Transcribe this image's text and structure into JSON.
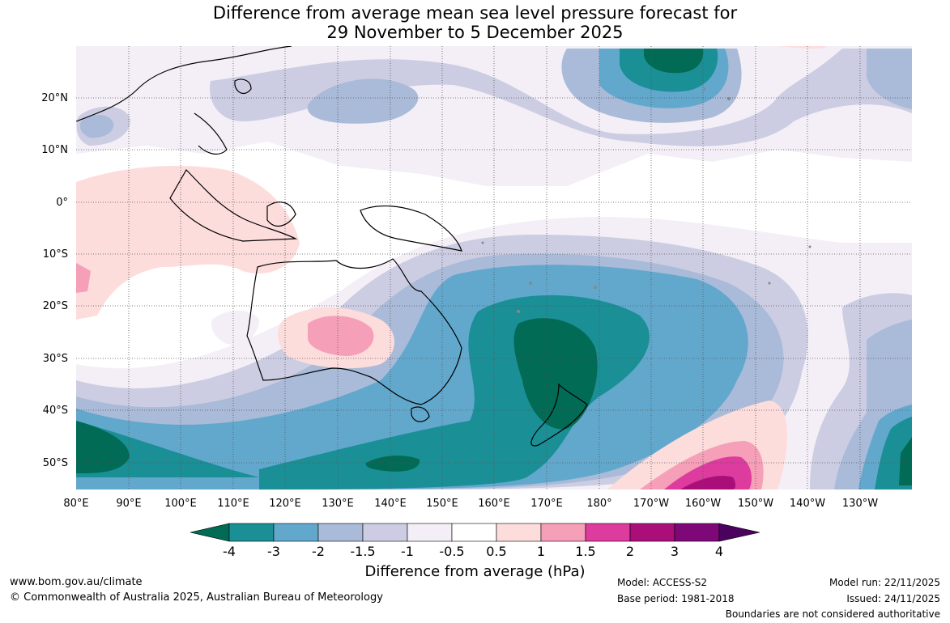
{
  "title": {
    "line1": "Difference from average mean sea level pressure forecast for",
    "line2": "29 November to 5 December 2025"
  },
  "map": {
    "lat_labels": [
      "20°N",
      "10°N",
      "0°",
      "10°S",
      "20°S",
      "30°S",
      "40°S",
      "50°S"
    ],
    "lon_labels": [
      "80°E",
      "90°E",
      "100°E",
      "110°E",
      "120°E",
      "130°E",
      "140°E",
      "150°E",
      "160°E",
      "170°E",
      "180°",
      "170°W",
      "160°W",
      "150°W",
      "140°W",
      "130°W"
    ],
    "lon_range": [
      80,
      235
    ],
    "lat_range": [
      -55,
      30
    ],
    "gridlines": true
  },
  "colorbar": {
    "title": "Difference from average (hPa)",
    "tick_labels": [
      "-4",
      "-3",
      "-2",
      "-1.5",
      "-1",
      "-0.5",
      "0.5",
      "1",
      "1.5",
      "2",
      "3",
      "4"
    ],
    "colors": [
      "#016b55",
      "#1a8f96",
      "#62a8cd",
      "#a9bbd8",
      "#cccde2",
      "#f4eff7",
      "#ffffff",
      "#fddcdc",
      "#f59fb8",
      "#dd3b9d",
      "#aa0e79",
      "#7e0878",
      "#4a025e"
    ]
  },
  "footer": {
    "website": "www.bom.gov.au/climate",
    "copyright": "© Commonwealth of Australia 2025, Australian Bureau of Meteorology",
    "model": "Model: ACCESS-S2",
    "base_period": "Base period: 1981-2018",
    "model_run": "Model run: 22/11/2025",
    "issued": "Issued: 24/11/2025",
    "disclaimer": "Boundaries are not considered authoritative"
  }
}
